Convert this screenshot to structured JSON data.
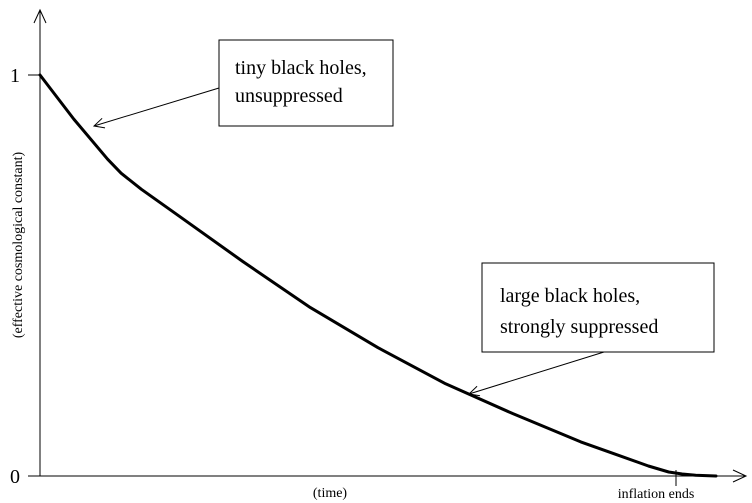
{
  "chart_data": {
    "type": "line",
    "title": "",
    "xlabel": "(time)",
    "ylabel": "(effective cosmological constant)",
    "yticks": [
      {
        "value": 0,
        "label": "0"
      },
      {
        "value": 1,
        "label": "1"
      }
    ],
    "xticks": [
      {
        "value": 0.95,
        "label": "inflation ends"
      }
    ],
    "xlim": [
      0,
      1
    ],
    "ylim": [
      0,
      1
    ],
    "grid": false,
    "series": [
      {
        "x": [
          0,
          0.05,
          0.1,
          0.12,
          0.15,
          0.2,
          0.3,
          0.4,
          0.5,
          0.6,
          0.7,
          0.8,
          0.85,
          0.9,
          0.93,
          0.95,
          0.97,
          1.0
        ],
        "y": [
          1,
          0.89,
          0.79,
          0.755,
          0.715,
          0.655,
          0.535,
          0.42,
          0.32,
          0.23,
          0.155,
          0.085,
          0.055,
          0.025,
          0.01,
          0.005,
          0.002,
          0
        ]
      }
    ],
    "annotations": [
      {
        "lines": [
          "tiny black holes,",
          "unsuppressed"
        ],
        "target": {
          "x": 0.08,
          "y": 0.87
        }
      },
      {
        "lines": [
          "large black holes,",
          "strongly suppressed"
        ],
        "target": {
          "x": 0.63,
          "y": 0.21
        }
      }
    ]
  }
}
